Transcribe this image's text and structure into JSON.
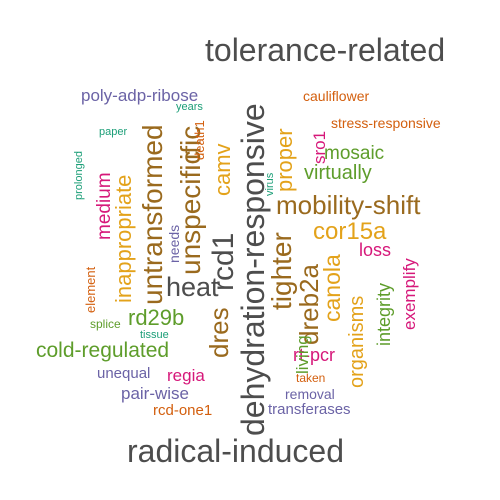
{
  "colors": {
    "gray": "#4d4d4d",
    "purple": "#6b63a6",
    "green": "#5e9d2b",
    "orange": "#d35f0e",
    "gold": "#e3a21a",
    "brown": "#9a6a1e",
    "magenta": "#d6187a",
    "teal": "#1b9e77"
  },
  "words": {
    "tolerance_related": "tolerance-related",
    "radical_induced": "radical-induced",
    "dehydration_responsive": "dehydration-responsive",
    "heat": "heat",
    "mobility_shift": "mobility-shift",
    "rcd1": "rcd1",
    "unspecific": "unspecific",
    "untransformed": "untransformed",
    "tighter": "tighter",
    "dreb2a": "dreb2a",
    "cor15a": "cor15a",
    "inappropriate": "inappropriate",
    "cold_regulated": "cold-regulated",
    "rd29b": "rd29b",
    "canola": "canola",
    "virtually": "virtually",
    "mosaic": "mosaic",
    "proper": "proper",
    "camv": "camv",
    "ific": "ific",
    "dres": "dres",
    "organisms": "organisms",
    "integrity": "integrity",
    "living": "living",
    "rt_pcr": "rt-pcr",
    "poly_adp_ribose": "poly-adp-ribose",
    "cauliflower": "cauliflower",
    "stress_responsive": "stress-responsive",
    "medium": "medium",
    "loss": "loss",
    "exemplify": "exemplify",
    "regia": "regia",
    "unequal": "unequal",
    "pair_wise": "pair-wise",
    "rcd_one1": "rcd-one1",
    "transferases": "transferases",
    "removal": "removal",
    "taken": "taken",
    "sro1": "sro1",
    "years": "years",
    "paper": "paper",
    "death1": "death1",
    "prolonged": "prolonged",
    "needs": "needs",
    "virus": "virus",
    "element": "element",
    "splice": "splice",
    "tissue": "tissue"
  }
}
